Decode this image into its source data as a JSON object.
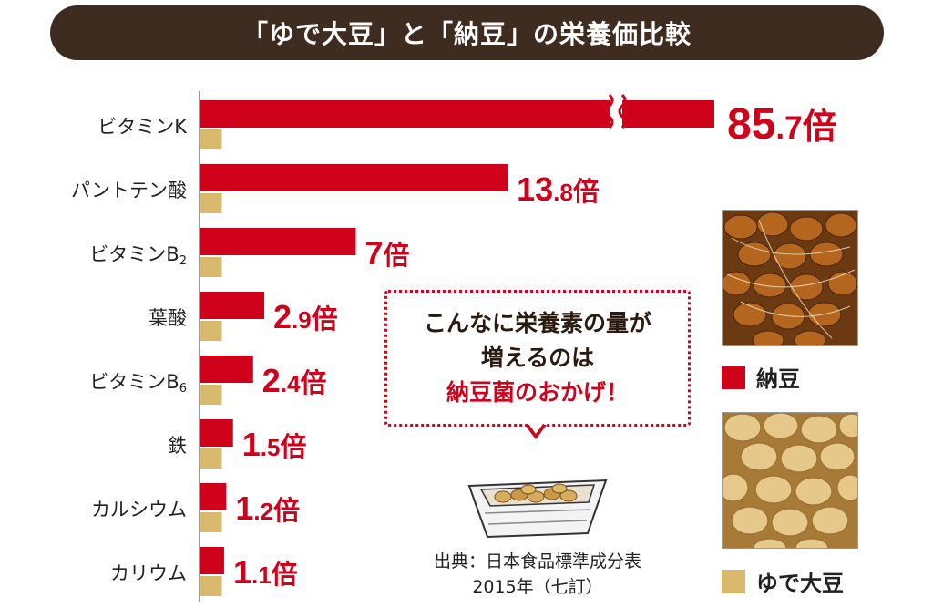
{
  "title": "「ゆで大豆」と「納豆」の栄養価比較",
  "chart_data": {
    "type": "bar",
    "orientation": "horizontal",
    "categories": [
      {
        "name": "ビタミンK",
        "sub": ""
      },
      {
        "name": "パントテン酸",
        "sub": ""
      },
      {
        "name": "ビタミンB",
        "sub": "2"
      },
      {
        "name": "葉酸",
        "sub": ""
      },
      {
        "name": "ビタミンB",
        "sub": "6"
      },
      {
        "name": "鉄",
        "sub": ""
      },
      {
        "name": "カルシウム",
        "sub": ""
      },
      {
        "name": "カリウム",
        "sub": ""
      }
    ],
    "series": [
      {
        "name": "納豆",
        "values": [
          85.7,
          13.8,
          7,
          2.9,
          2.4,
          1.5,
          1.2,
          1.1
        ],
        "color": "#d0021b"
      },
      {
        "name": "ゆで大豆",
        "values": [
          1,
          1,
          1,
          1,
          1,
          1,
          1,
          1
        ],
        "color": "#d9b96e"
      }
    ],
    "value_labels": [
      {
        "int": "85",
        "dec": ".7",
        "unit": "倍"
      },
      {
        "int": "13",
        "dec": ".8",
        "unit": "倍"
      },
      {
        "int": "7",
        "dec": "",
        "unit": "倍"
      },
      {
        "int": "2",
        "dec": ".9",
        "unit": "倍"
      },
      {
        "int": "2",
        "dec": ".4",
        "unit": "倍"
      },
      {
        "int": "1",
        "dec": ".5",
        "unit": "倍"
      },
      {
        "int": "1",
        "dec": ".2",
        "unit": "倍"
      },
      {
        "int": "1",
        "dec": ".1",
        "unit": "倍"
      }
    ],
    "axis_break_on": "ビタミンK",
    "legend_position": "right"
  },
  "callout": {
    "line1": "こんなに栄養素の量が",
    "line2": "増えるのは",
    "line3": "納豆菌のおかげ！"
  },
  "source": {
    "line1": "出典：日本食品標準成分表",
    "line2": "2015年（七訂）"
  },
  "legend": {
    "natto": "納豆",
    "soybean": "ゆで大豆"
  },
  "colors": {
    "natto": "#d0021b",
    "soybean": "#d9b96e",
    "title_bg": "#3d2c1f"
  }
}
